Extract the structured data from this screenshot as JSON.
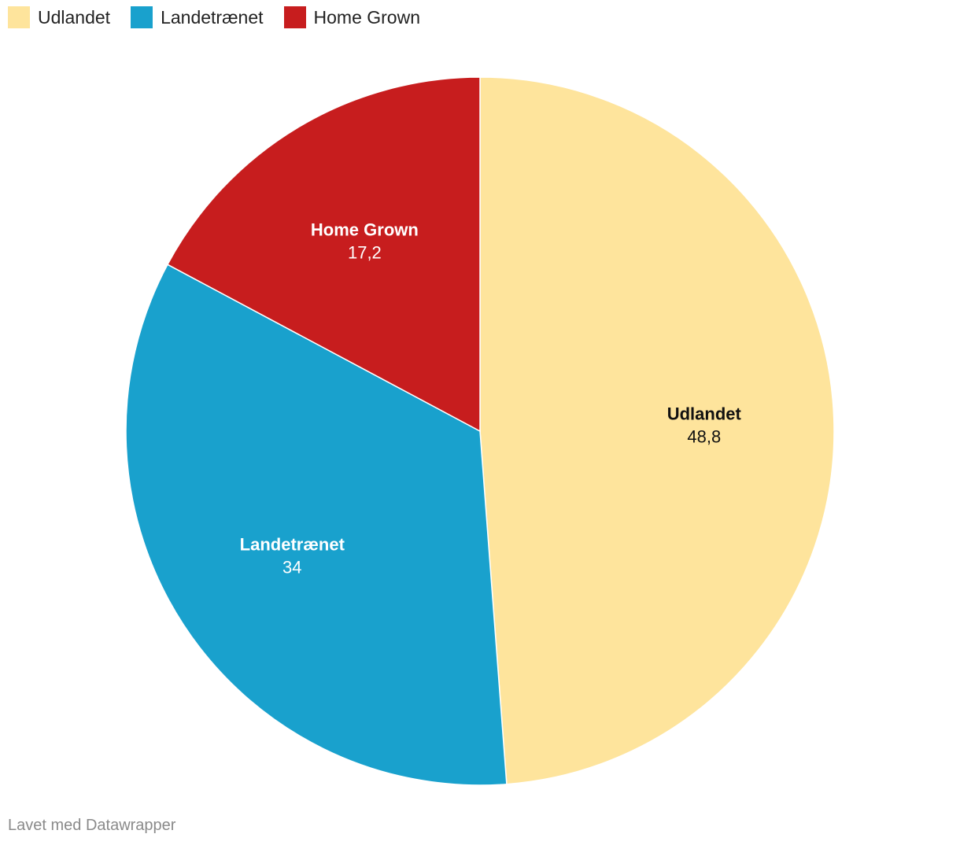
{
  "chart_data": {
    "type": "pie",
    "slices": [
      {
        "name": "Udlandet",
        "value": 48.8,
        "value_label": "48,8",
        "color": "#fee49c",
        "label_color": "#111111"
      },
      {
        "name": "Landetrænet",
        "value": 34,
        "value_label": "34",
        "color": "#19a1cd",
        "label_color": "#ffffff"
      },
      {
        "name": "Home Grown",
        "value": 17.2,
        "value_label": "17,2",
        "color": "#c71d1e",
        "label_color": "#ffffff"
      }
    ],
    "legend_position": "top-left",
    "start": "12 o'clock",
    "direction": "clockwise"
  },
  "legend": {
    "items": [
      {
        "label": "Udlandet",
        "color": "#fee49c"
      },
      {
        "label": "Landetrænet",
        "color": "#19a1cd"
      },
      {
        "label": "Home Grown",
        "color": "#c71d1e"
      }
    ]
  },
  "footer": {
    "credit": "Lavet med Datawrapper"
  }
}
